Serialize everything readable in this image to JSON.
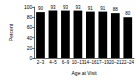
{
  "chart_data": {
    "type": "bar",
    "x_label": "Age at Visit",
    "y_label": "Percent",
    "categories": [
      "2–3",
      "4–5",
      "6–9",
      "10–13",
      "14–16",
      "17–19",
      "20–21",
      "22–24"
    ],
    "values": [
      90,
      93,
      93,
      93,
      91,
      91,
      88,
      80
    ],
    "color": "#000000",
    "ylim": [
      0,
      100
    ],
    "yticks": [
      0,
      20,
      40,
      60,
      80,
      100
    ],
    "data_labels": true,
    "grid": false
  }
}
